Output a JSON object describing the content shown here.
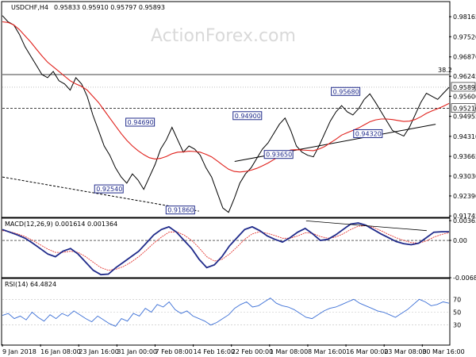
{
  "header": {
    "symbol": "USDCHF,H4",
    "ohlc": "0.95833 0.95910 0.95797 0.95893",
    "macd": "MACD(12,26,9) 0.001614 0.001364",
    "rsi": "RSI(14) 64.4824"
  },
  "watermark": "ActionForex.com",
  "colors": {
    "price": "#000000",
    "ema": "#e0201b",
    "macd": "#1f2a8a",
    "signal": "#e0201b",
    "rsi": "#3b6fd6",
    "levels": "#1f2a8a"
  },
  "chart_data": {
    "type": "line",
    "price_panel": {
      "ylim": [
        0.9175,
        0.9855
      ],
      "yticks": [
        "0.98165",
        "0.97520",
        "0.96870",
        "0.96245",
        "0.95600",
        "0.94955",
        "0.94310",
        "0.93665",
        "0.93030",
        "0.92390",
        "0.91745"
      ],
      "y_values": [
        0.98165,
        0.9752,
        0.9687,
        0.96245,
        0.956,
        0.94955,
        0.9431,
        0.93665,
        0.9303,
        0.9239,
        0.91745
      ],
      "current_price": "0.95893",
      "fib_label": "38.2",
      "fib_level": 0.963,
      "support_level": 0.9521,
      "support_label": "0.95210",
      "levels": [
        {
          "label": "0.95680",
          "x": 0.74,
          "y": 0.9568
        },
        {
          "label": "0.94900",
          "x": 0.52,
          "y": 0.949
        },
        {
          "label": "0.94690",
          "x": 0.28,
          "y": 0.9469
        },
        {
          "label": "0.94320",
          "x": 0.79,
          "y": 0.9432
        },
        {
          "label": "0.93650",
          "x": 0.59,
          "y": 0.9365
        },
        {
          "label": "0.92540",
          "x": 0.21,
          "y": 0.9254
        },
        {
          "label": "0.91860",
          "x": 0.37,
          "y": 0.9186
        }
      ],
      "close_series": [
        0.982,
        0.98,
        0.979,
        0.976,
        0.972,
        0.969,
        0.966,
        0.963,
        0.962,
        0.964,
        0.961,
        0.96,
        0.958,
        0.962,
        0.96,
        0.956,
        0.95,
        0.945,
        0.94,
        0.937,
        0.933,
        0.93,
        0.928,
        0.931,
        0.929,
        0.926,
        0.93,
        0.934,
        0.939,
        0.942,
        0.946,
        0.942,
        0.938,
        0.94,
        0.939,
        0.937,
        0.933,
        0.93,
        0.925,
        0.92,
        0.9186,
        0.923,
        0.928,
        0.931,
        0.933,
        0.936,
        0.939,
        0.941,
        0.944,
        0.947,
        0.949,
        0.945,
        0.94,
        0.938,
        0.937,
        0.9365,
        0.94,
        0.944,
        0.948,
        0.951,
        0.953,
        0.951,
        0.95,
        0.952,
        0.955,
        0.9568,
        0.954,
        0.951,
        0.948,
        0.945,
        0.944,
        0.9432,
        0.946,
        0.95,
        0.954,
        0.957,
        0.956,
        0.955,
        0.957,
        0.9589
      ],
      "ema_series": [
        0.98,
        0.9798,
        0.979,
        0.9775,
        0.9755,
        0.9735,
        0.9712,
        0.969,
        0.967,
        0.9655,
        0.964,
        0.9625,
        0.961,
        0.96,
        0.9592,
        0.958,
        0.956,
        0.954,
        0.9515,
        0.949,
        0.9465,
        0.944,
        0.9418,
        0.94,
        0.9385,
        0.9372,
        0.9362,
        0.9358,
        0.936,
        0.9366,
        0.9375,
        0.938,
        0.9381,
        0.9383,
        0.9382,
        0.938,
        0.9373,
        0.9365,
        0.9352,
        0.9338,
        0.9325,
        0.9318,
        0.9316,
        0.9318,
        0.9322,
        0.9328,
        0.9336,
        0.9345,
        0.9356,
        0.9368,
        0.938,
        0.9387,
        0.9388,
        0.9387,
        0.9386,
        0.9385,
        0.939,
        0.9398,
        0.941,
        0.9422,
        0.9435,
        0.9443,
        0.945,
        0.9458,
        0.9468,
        0.9478,
        0.9484,
        0.9487,
        0.9487,
        0.9485,
        0.9482,
        0.9479,
        0.948,
        0.9485,
        0.9494,
        0.9505,
        0.9513,
        0.952,
        0.9528,
        0.9537
      ],
      "trendlines": [
        {
          "x": [
            0.0,
            0.44
          ],
          "y": [
            0.93,
            0.919
          ]
        },
        {
          "x": [
            0.52,
            0.97
          ],
          "y": [
            0.935,
            0.947
          ]
        }
      ]
    },
    "macd_panel": {
      "ylim": [
        -0.00685,
        0.00365
      ],
      "yticks": [
        "0.003638",
        "0.00",
        "-0.006858"
      ],
      "y_values": [
        0.003638,
        0.0,
        -0.006858
      ],
      "macd_series": [
        0.002,
        0.0015,
        0.001,
        0.0004,
        -0.0005,
        -0.0015,
        -0.0025,
        -0.003,
        -0.002,
        -0.0015,
        -0.0025,
        -0.004,
        -0.0055,
        -0.0063,
        -0.0062,
        -0.005,
        -0.004,
        -0.003,
        -0.002,
        -0.0005,
        0.001,
        0.002,
        0.0025,
        0.0015,
        0.0,
        -0.0015,
        -0.0035,
        -0.005,
        -0.0045,
        -0.003,
        -0.001,
        0.0005,
        0.002,
        0.0025,
        0.0018,
        0.0008,
        0.0002,
        -0.0003,
        0.0005,
        0.0015,
        0.0022,
        0.0012,
        0.0,
        0.0002,
        0.001,
        0.002,
        0.003,
        0.0032,
        0.0028,
        0.002,
        0.0012,
        0.0005,
        -0.0002,
        -0.0006,
        -0.0008,
        -0.0005,
        0.0005,
        0.0015,
        0.0016,
        0.0016
      ],
      "signal_series": [
        0.0018,
        0.0016,
        0.0012,
        0.0007,
        0.0,
        -0.0008,
        -0.0016,
        -0.0022,
        -0.0022,
        -0.002,
        -0.0022,
        -0.003,
        -0.004,
        -0.005,
        -0.0055,
        -0.0053,
        -0.0048,
        -0.004,
        -0.003,
        -0.0018,
        -0.0005,
        0.0006,
        0.0015,
        0.0016,
        0.001,
        0.0,
        -0.0014,
        -0.003,
        -0.0038,
        -0.0035,
        -0.0025,
        -0.0012,
        0.0002,
        0.0012,
        0.0016,
        0.0013,
        0.0009,
        0.0004,
        0.0004,
        0.0008,
        0.0014,
        0.0013,
        0.0007,
        0.0004,
        0.0006,
        0.0012,
        0.002,
        0.0026,
        0.0027,
        0.0024,
        0.0018,
        0.0011,
        0.0005,
        0.0,
        -0.0004,
        -0.0005,
        -0.0001,
        0.0006,
        0.0011,
        0.0014
      ],
      "trendline": {
        "x": [
          0.68,
          0.95
        ],
        "y": [
          0.0036,
          0.0018
        ]
      }
    },
    "rsi_panel": {
      "ylim": [
        0,
        100
      ],
      "yticks": [
        "70",
        "50",
        "30"
      ],
      "y_values": [
        70,
        50,
        30
      ],
      "rsi_series": [
        45,
        48,
        40,
        44,
        38,
        50,
        42,
        36,
        46,
        40,
        48,
        44,
        52,
        46,
        40,
        35,
        44,
        38,
        32,
        28,
        40,
        36,
        48,
        44,
        56,
        50,
        62,
        58,
        66,
        54,
        48,
        52,
        44,
        40,
        36,
        30,
        34,
        40,
        46,
        56,
        62,
        66,
        58,
        60,
        66,
        72,
        64,
        60,
        58,
        54,
        48,
        42,
        40,
        46,
        52,
        56,
        58,
        62,
        66,
        70,
        64,
        60,
        56,
        52,
        50,
        46,
        42,
        48,
        54,
        62,
        70,
        66,
        60,
        62,
        66,
        64
      ]
    },
    "x_labels": [
      "9 Jan 2018",
      "16 Jan 08:00",
      "23 Jan 16:00",
      "31 Jan 00:00",
      "7 Feb 08:00",
      "14 Feb 16:00",
      "22 Feb 00:00",
      "1 Mar 08:00",
      "8 Mar 16:00",
      "16 Mar 00:00",
      "23 Mar 08:00",
      "30 Mar 16:00"
    ]
  }
}
